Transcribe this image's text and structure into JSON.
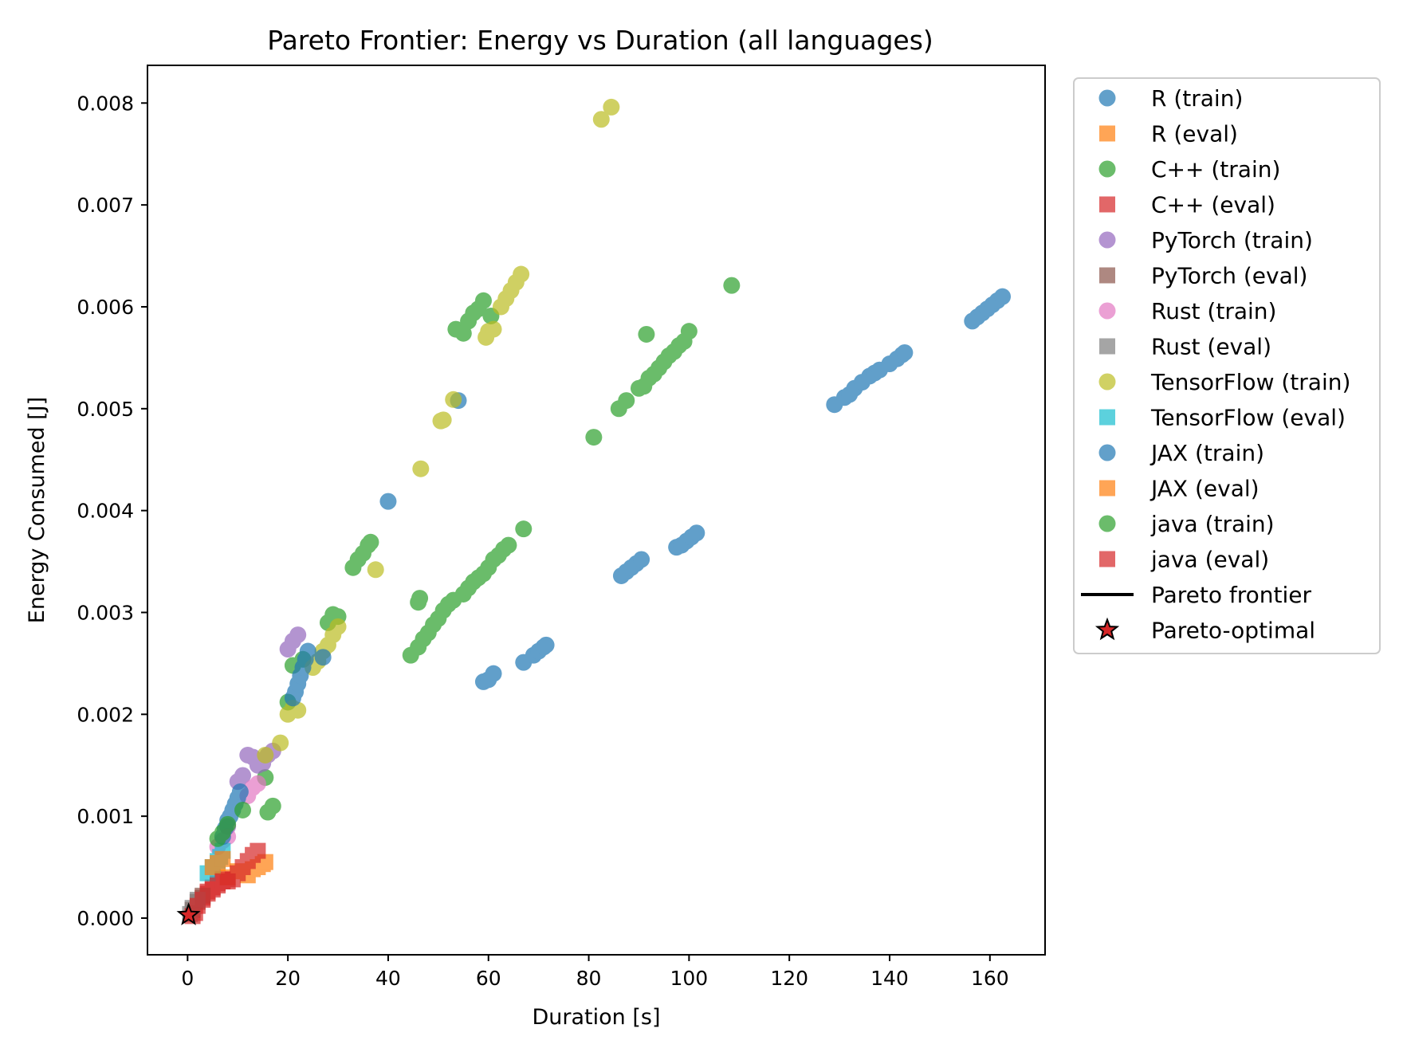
{
  "chart_data": {
    "type": "scatter",
    "title": "Pareto Frontier: Energy vs Duration (all languages)",
    "xlabel": "Duration [s]",
    "ylabel": "Energy Consumed [J]",
    "xlim": [
      -8,
      171
    ],
    "ylim": [
      -0.00036,
      0.00837
    ],
    "xticks": [
      0,
      20,
      40,
      60,
      80,
      100,
      120,
      140,
      160
    ],
    "xtick_labels": [
      "0",
      "20",
      "40",
      "60",
      "80",
      "100",
      "120",
      "140",
      "160"
    ],
    "yticks": [
      0.0,
      0.001,
      0.002,
      0.003,
      0.004,
      0.005,
      0.006,
      0.007,
      0.008
    ],
    "ytick_labels": [
      "0.000",
      "0.001",
      "0.002",
      "0.003",
      "0.004",
      "0.005",
      "0.006",
      "0.007",
      "0.008"
    ],
    "grid": false,
    "legend_position": "outside-right",
    "series": [
      {
        "name": "R (train)",
        "marker": "circle",
        "color": "#1f77b4",
        "points": [
          [
            40.0,
            0.00409
          ],
          [
            54.0,
            0.00508
          ],
          [
            59.0,
            0.00232
          ],
          [
            60.0,
            0.00234
          ],
          [
            61.0,
            0.0024
          ],
          [
            67.0,
            0.00251
          ],
          [
            69.0,
            0.00258
          ],
          [
            70.0,
            0.00262
          ],
          [
            71.0,
            0.00266
          ],
          [
            71.5,
            0.00268
          ],
          [
            129.0,
            0.00504
          ],
          [
            131.0,
            0.00511
          ],
          [
            132.0,
            0.00514
          ],
          [
            133.0,
            0.0052
          ],
          [
            134.5,
            0.00526
          ],
          [
            136.0,
            0.00532
          ],
          [
            137.0,
            0.00535
          ],
          [
            138.0,
            0.00538
          ],
          [
            140.0,
            0.00544
          ],
          [
            141.5,
            0.00549
          ],
          [
            142.5,
            0.00553
          ],
          [
            143.0,
            0.00555
          ]
        ]
      },
      {
        "name": "R (eval)",
        "marker": "square",
        "color": "#ff7f0e",
        "points": [
          [
            8.0,
            0.0004
          ],
          [
            10.0,
            0.00046
          ],
          [
            12.0,
            0.00042
          ],
          [
            13.0,
            0.00048
          ],
          [
            14.0,
            0.0005
          ],
          [
            15.0,
            0.00053
          ],
          [
            15.5,
            0.00055
          ]
        ]
      },
      {
        "name": "C++ (train)",
        "marker": "circle",
        "color": "#2ca02c",
        "points": [
          [
            16.0,
            0.00104
          ],
          [
            17.0,
            0.0011
          ],
          [
            15.5,
            0.00138
          ],
          [
            21.0,
            0.00248
          ],
          [
            23.0,
            0.00254
          ],
          [
            20.0,
            0.00212
          ],
          [
            28.0,
            0.0029
          ],
          [
            29.0,
            0.00298
          ],
          [
            30.0,
            0.00296
          ],
          [
            33.0,
            0.00344
          ],
          [
            34.0,
            0.00352
          ],
          [
            35.0,
            0.00358
          ],
          [
            36.0,
            0.00366
          ],
          [
            36.5,
            0.00369
          ],
          [
            44.5,
            0.00258
          ],
          [
            46.0,
            0.00266
          ],
          [
            47.0,
            0.00274
          ],
          [
            48.0,
            0.0028
          ],
          [
            49.0,
            0.00288
          ],
          [
            50.0,
            0.00294
          ],
          [
            51.0,
            0.00302
          ],
          [
            52.0,
            0.00308
          ],
          [
            53.0,
            0.00312
          ],
          [
            46.0,
            0.0031
          ],
          [
            46.3,
            0.00314
          ],
          [
            55.0,
            0.00318
          ],
          [
            56.0,
            0.00324
          ],
          [
            57.0,
            0.0033
          ],
          [
            58.0,
            0.00334
          ],
          [
            59.0,
            0.00338
          ],
          [
            60.0,
            0.00344
          ],
          [
            61.0,
            0.00352
          ],
          [
            62.0,
            0.00356
          ],
          [
            63.0,
            0.00362
          ],
          [
            64.0,
            0.00366
          ],
          [
            67.0,
            0.00382
          ],
          [
            53.5,
            0.00578
          ],
          [
            55.0,
            0.00574
          ],
          [
            56.0,
            0.00586
          ],
          [
            57.0,
            0.00594
          ],
          [
            58.0,
            0.00598
          ],
          [
            59.0,
            0.00606
          ],
          [
            60.5,
            0.00591
          ],
          [
            81.0,
            0.00472
          ],
          [
            86.0,
            0.005
          ],
          [
            87.5,
            0.00508
          ],
          [
            90.0,
            0.0052
          ],
          [
            91.0,
            0.00522
          ],
          [
            92.0,
            0.0053
          ],
          [
            93.0,
            0.00534
          ],
          [
            94.0,
            0.0054
          ],
          [
            95.0,
            0.00546
          ],
          [
            96.0,
            0.00552
          ],
          [
            97.0,
            0.00556
          ],
          [
            98.0,
            0.00562
          ],
          [
            99.0,
            0.00566
          ],
          [
            100.0,
            0.00576
          ],
          [
            91.5,
            0.00573
          ],
          [
            108.5,
            0.00621
          ]
        ]
      },
      {
        "name": "C++ (eval)",
        "marker": "square",
        "color": "#d62728",
        "points": [
          [
            1.5,
            5e-05
          ],
          [
            3.0,
            0.0002
          ],
          [
            4.0,
            0.00026
          ],
          [
            5.0,
            0.0003
          ],
          [
            6.0,
            0.00034
          ],
          [
            7.0,
            0.00038
          ],
          [
            8.0,
            0.00036
          ]
        ]
      },
      {
        "name": "PyTorch (train)",
        "marker": "circle",
        "color": "#9467bd",
        "points": [
          [
            8.0,
            0.0009
          ],
          [
            10.0,
            0.00134
          ],
          [
            11.0,
            0.0014
          ],
          [
            12.0,
            0.0016
          ],
          [
            13.0,
            0.00158
          ],
          [
            14.0,
            0.0015
          ],
          [
            15.0,
            0.00152
          ],
          [
            16.0,
            0.0016
          ],
          [
            17.0,
            0.00164
          ],
          [
            20.0,
            0.00264
          ],
          [
            21.0,
            0.00272
          ],
          [
            22.0,
            0.00278
          ]
        ]
      },
      {
        "name": "PyTorch (eval)",
        "marker": "square",
        "color": "#8c564b",
        "points": [
          [
            1.0,
            8e-05
          ],
          [
            2.0,
            0.00016
          ],
          [
            3.0,
            0.00022
          ]
        ]
      },
      {
        "name": "Rust (train)",
        "marker": "circle",
        "color": "#e377c2",
        "points": [
          [
            6.0,
            0.0007
          ],
          [
            7.0,
            0.00076
          ],
          [
            8.0,
            0.0008
          ],
          [
            12.0,
            0.0012
          ],
          [
            13.0,
            0.00128
          ],
          [
            14.0,
            0.00132
          ]
        ]
      },
      {
        "name": "Rust (eval)",
        "marker": "square",
        "color": "#7f7f7f",
        "points": [
          [
            0.5,
            4e-05
          ],
          [
            1.0,
            0.0001
          ],
          [
            2.0,
            0.00018
          ]
        ]
      },
      {
        "name": "TensorFlow (train)",
        "marker": "circle",
        "color": "#bcbd22",
        "points": [
          [
            15.5,
            0.0016
          ],
          [
            18.5,
            0.00172
          ],
          [
            20.0,
            0.002
          ],
          [
            21.0,
            0.00206
          ],
          [
            22.0,
            0.00204
          ],
          [
            25.0,
            0.00246
          ],
          [
            26.0,
            0.00252
          ],
          [
            27.0,
            0.00262
          ],
          [
            28.0,
            0.00268
          ],
          [
            29.0,
            0.00278
          ],
          [
            30.0,
            0.00286
          ],
          [
            37.5,
            0.00342
          ],
          [
            46.5,
            0.00441
          ],
          [
            50.5,
            0.00488
          ],
          [
            51.0,
            0.00489
          ],
          [
            53.0,
            0.00509
          ],
          [
            59.5,
            0.0057
          ],
          [
            60.0,
            0.00576
          ],
          [
            61.0,
            0.00578
          ],
          [
            62.5,
            0.006
          ],
          [
            63.5,
            0.00608
          ],
          [
            64.5,
            0.00616
          ],
          [
            65.5,
            0.00624
          ],
          [
            66.5,
            0.00632
          ],
          [
            82.5,
            0.00784
          ],
          [
            84.5,
            0.00796
          ]
        ]
      },
      {
        "name": "TensorFlow (eval)",
        "marker": "square",
        "color": "#17becf",
        "points": [
          [
            4.0,
            0.00044
          ],
          [
            5.0,
            0.0005
          ],
          [
            6.0,
            0.00056
          ],
          [
            6.5,
            0.0006
          ],
          [
            7.0,
            0.00066
          ]
        ]
      },
      {
        "name": "JAX (train)",
        "marker": "circle",
        "color": "#1f77b4",
        "points": [
          [
            7.0,
            0.0008
          ],
          [
            7.5,
            0.00088
          ],
          [
            8.0,
            0.00096
          ],
          [
            8.5,
            0.001
          ],
          [
            9.0,
            0.00106
          ],
          [
            9.5,
            0.00112
          ],
          [
            10.0,
            0.00118
          ],
          [
            10.5,
            0.00124
          ],
          [
            21.0,
            0.00216
          ],
          [
            21.5,
            0.00222
          ],
          [
            22.0,
            0.0023
          ],
          [
            22.5,
            0.00238
          ],
          [
            23.0,
            0.00246
          ],
          [
            23.5,
            0.00254
          ],
          [
            24.0,
            0.00262
          ],
          [
            27.0,
            0.00256
          ],
          [
            86.5,
            0.00336
          ],
          [
            87.5,
            0.0034
          ],
          [
            88.5,
            0.00344
          ],
          [
            89.5,
            0.00348
          ],
          [
            90.5,
            0.00352
          ],
          [
            97.5,
            0.00364
          ],
          [
            98.5,
            0.00366
          ],
          [
            99.5,
            0.0037
          ],
          [
            100.5,
            0.00374
          ],
          [
            101.5,
            0.00378
          ],
          [
            156.5,
            0.00586
          ],
          [
            157.5,
            0.0059
          ],
          [
            158.5,
            0.00594
          ],
          [
            159.5,
            0.00598
          ],
          [
            160.5,
            0.00602
          ],
          [
            161.5,
            0.00606
          ],
          [
            162.5,
            0.0061
          ]
        ]
      },
      {
        "name": "JAX (eval)",
        "marker": "square",
        "color": "#ff7f0e",
        "points": [
          [
            5.0,
            0.0005
          ],
          [
            6.0,
            0.00054
          ],
          [
            7.0,
            0.00058
          ]
        ]
      },
      {
        "name": "java (train)",
        "marker": "circle",
        "color": "#2ca02c",
        "points": [
          [
            6.0,
            0.00078
          ],
          [
            7.0,
            0.00084
          ],
          [
            8.0,
            0.00092
          ],
          [
            11.0,
            0.00106
          ]
        ]
      },
      {
        "name": "java (eval)",
        "marker": "square",
        "color": "#d62728",
        "points": [
          [
            1.0,
            2e-05
          ],
          [
            2.0,
            0.00012
          ],
          [
            3.0,
            0.00018
          ],
          [
            4.0,
            0.00024
          ],
          [
            5.0,
            0.00028
          ],
          [
            6.0,
            0.00032
          ],
          [
            7.0,
            0.00036
          ],
          [
            9.0,
            0.00038
          ],
          [
            10.0,
            0.00044
          ],
          [
            11.0,
            0.0005
          ],
          [
            12.0,
            0.00056
          ],
          [
            13.0,
            0.00062
          ],
          [
            14.0,
            0.00066
          ]
        ]
      }
    ],
    "pareto_frontier": {
      "name": "Pareto frontier",
      "color": "#000000",
      "points": [
        [
          0.2,
          3e-05
        ]
      ]
    },
    "pareto_optimal": {
      "name": "Pareto-optimal",
      "marker": "star",
      "color": "#d62728",
      "edge": "#000000",
      "points": [
        [
          0.2,
          3e-05
        ]
      ]
    }
  }
}
